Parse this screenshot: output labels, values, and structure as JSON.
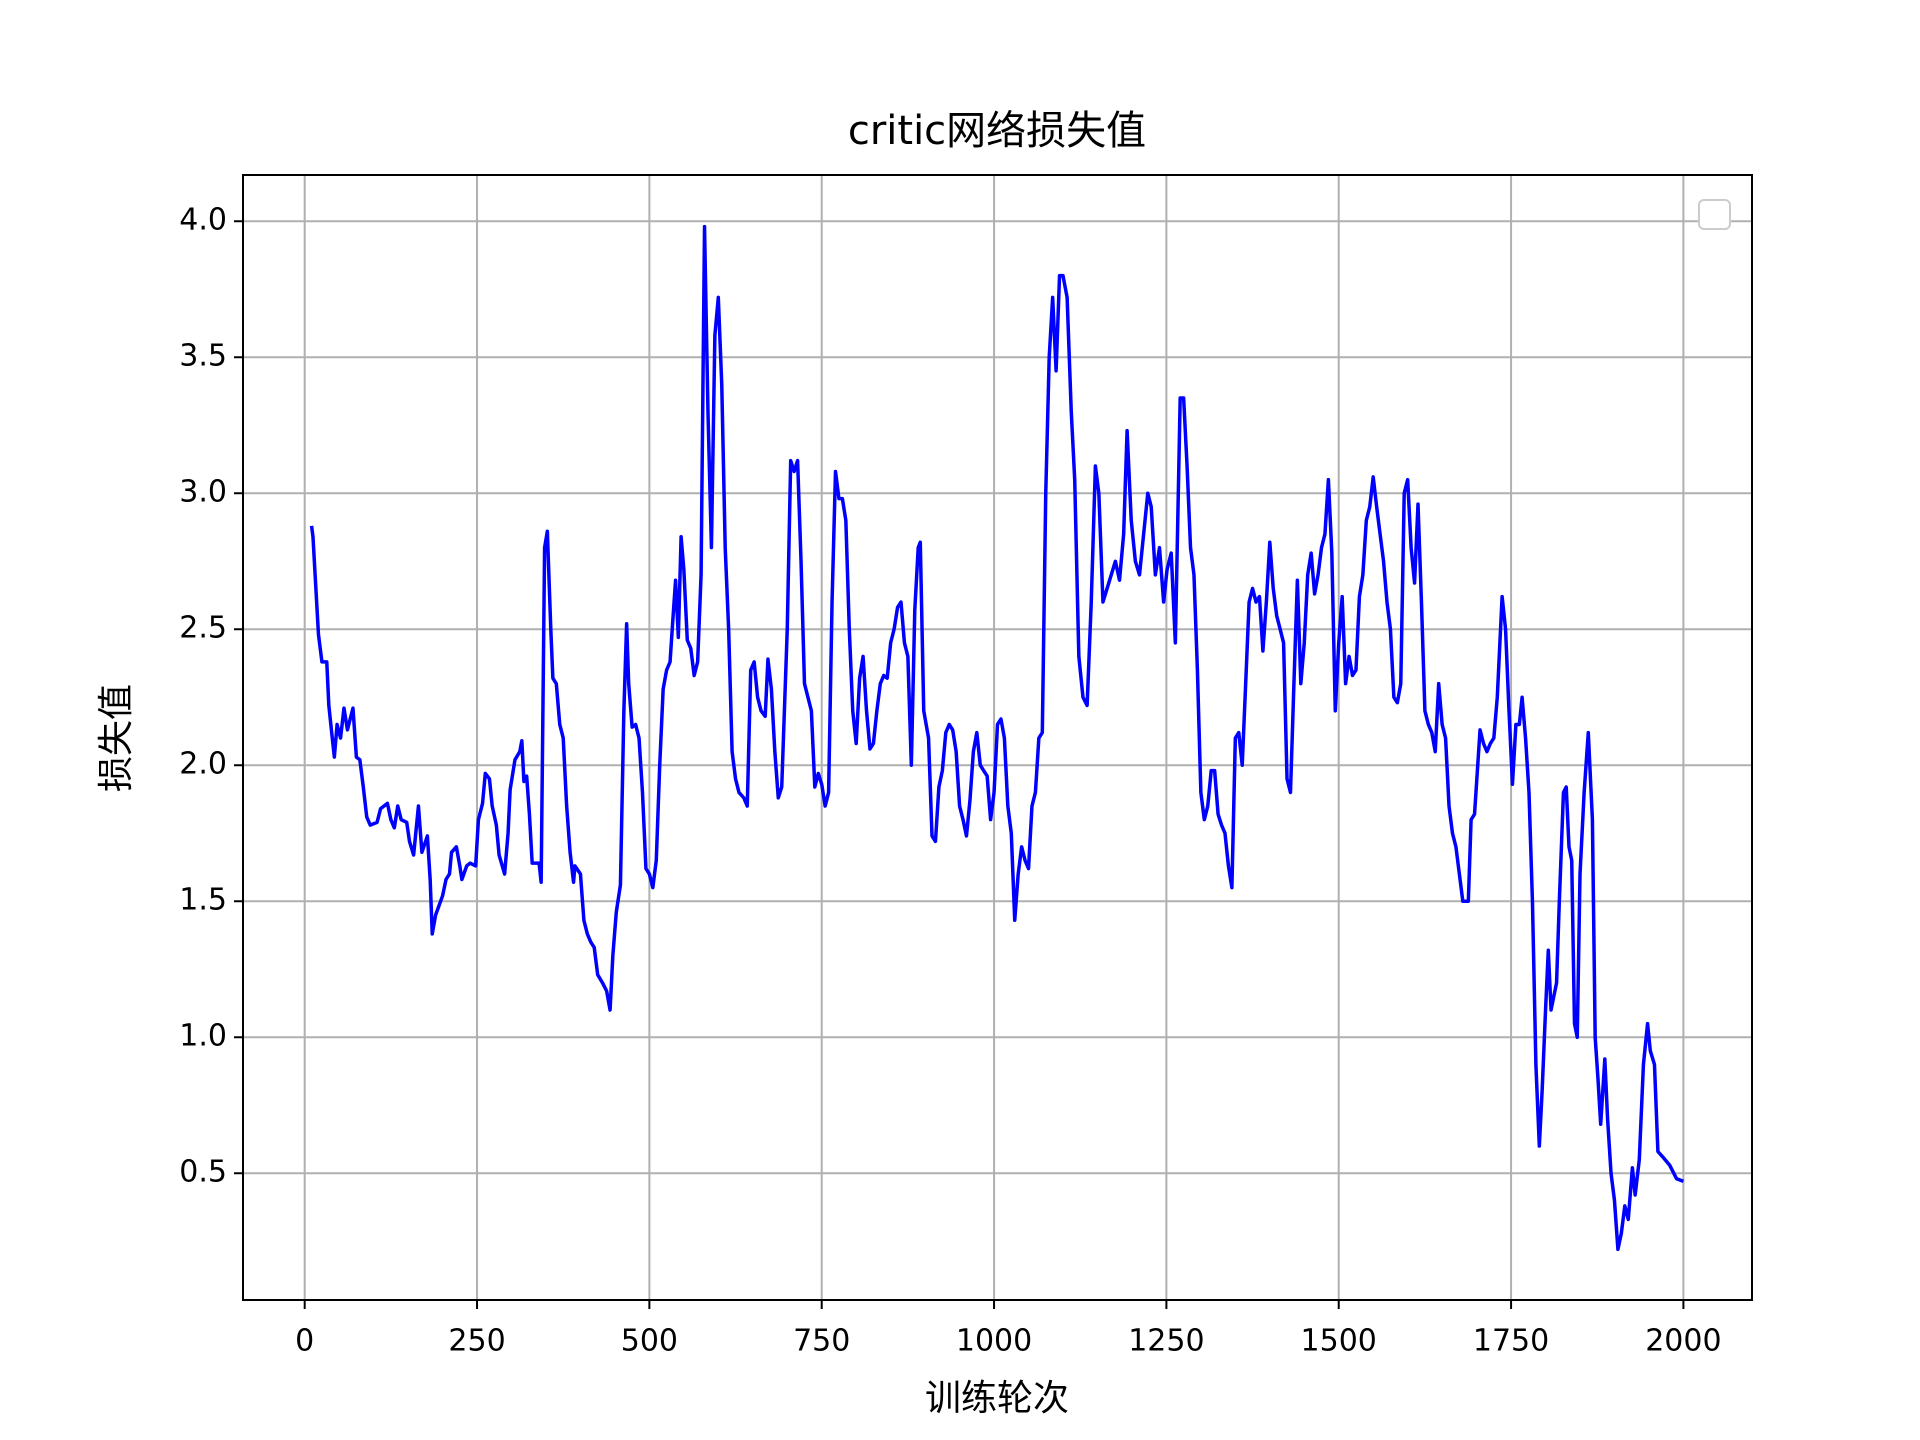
{
  "chart_data": {
    "type": "line",
    "title": "critic网络损失值",
    "xlabel": "训练轮次",
    "ylabel": "损失值",
    "color": "#0000ff",
    "grid": true,
    "legend": "upper right",
    "xlim": [
      -89.5,
      2099.5
    ],
    "ylim": [
      0.034,
      4.17
    ],
    "xticks": [
      0,
      250,
      500,
      750,
      1000,
      1250,
      1500,
      1750,
      2000
    ],
    "yticks": [
      0.5,
      {
        "value": 1,
        "label": "1.0"
      },
      1.5,
      {
        "value": 2,
        "label": "2.0"
      },
      2.5,
      {
        "value": 3,
        "label": "3.0"
      },
      3.5,
      {
        "value": 4,
        "label": "4.0"
      }
    ],
    "x": [
      10,
      12,
      20,
      25,
      32,
      35,
      40,
      43,
      47,
      52,
      57,
      62,
      70,
      75,
      80,
      85,
      90,
      95,
      105,
      110,
      120,
      125,
      130,
      135,
      140,
      148,
      152,
      158,
      165,
      170,
      178,
      182,
      185,
      190,
      200,
      205,
      210,
      213,
      220,
      225,
      228,
      235,
      240,
      248,
      252,
      258,
      262,
      268,
      272,
      278,
      282,
      290,
      295,
      298,
      305,
      312,
      315,
      318,
      322,
      326,
      330,
      340,
      343,
      348,
      352,
      357,
      360,
      365,
      370,
      375,
      380,
      385,
      390,
      392,
      400,
      405,
      410,
      415,
      420,
      425,
      432,
      438,
      443,
      447,
      452,
      458,
      463,
      467,
      470,
      475,
      480,
      485,
      490,
      495,
      500,
      505,
      510,
      515,
      520,
      525,
      530,
      535,
      538,
      542,
      546,
      550,
      555,
      560,
      565,
      570,
      575,
      580,
      585,
      590,
      595,
      600,
      605,
      610,
      615,
      620,
      625,
      630,
      637,
      642,
      647,
      652,
      657,
      662,
      668,
      672,
      677,
      682,
      687,
      692,
      700,
      705,
      710,
      715,
      720,
      725,
      730,
      735,
      740,
      745,
      750,
      755,
      760,
      765,
      770,
      775,
      780,
      785,
      790,
      795,
      800,
      805,
      810,
      815,
      820,
      825,
      830,
      835,
      840,
      845,
      850,
      855,
      860,
      865,
      870,
      875,
      880,
      885,
      890,
      893,
      898,
      905,
      910,
      915,
      920,
      925,
      930,
      935,
      940,
      945,
      950,
      955,
      960,
      965,
      970,
      975,
      980,
      985,
      990,
      995,
      1000,
      1005,
      1010,
      1015,
      1020,
      1025,
      1030,
      1035,
      1040,
      1045,
      1050,
      1055,
      1060,
      1065,
      1070,
      1075,
      1080,
      1085,
      1090,
      1095,
      1100,
      1106,
      1112,
      1117,
      1123,
      1129,
      1135,
      1141,
      1147,
      1152,
      1158,
      1164,
      1170,
      1176,
      1182,
      1188,
      1193,
      1199,
      1205,
      1211,
      1217,
      1223,
      1228,
      1234,
      1240,
      1246,
      1251,
      1257,
      1263,
      1270,
      1275,
      1280,
      1285,
      1290,
      1295,
      1300,
      1305,
      1310,
      1315,
      1320,
      1325,
      1330,
      1335,
      1340,
      1345,
      1350,
      1355,
      1360,
      1365,
      1370,
      1375,
      1380,
      1385,
      1390,
      1395,
      1400,
      1405,
      1410,
      1415,
      1420,
      1425,
      1430,
      1435,
      1440,
      1445,
      1450,
      1455,
      1460,
      1465,
      1470,
      1475,
      1480,
      1485,
      1490,
      1495,
      1500,
      1505,
      1510,
      1515,
      1520,
      1525,
      1530,
      1535,
      1540,
      1545,
      1550,
      1555,
      1560,
      1565,
      1570,
      1575,
      1580,
      1585,
      1590,
      1595,
      1600,
      1605,
      1610,
      1615,
      1620,
      1625,
      1630,
      1635,
      1640,
      1645,
      1650,
      1655,
      1660,
      1665,
      1670,
      1675,
      1680,
      1688,
      1692,
      1697,
      1705,
      1710,
      1715,
      1720,
      1725,
      1730,
      1737,
      1742,
      1747,
      1752,
      1757,
      1762,
      1766,
      1771,
      1776,
      1781,
      1786,
      1791,
      1795,
      1800,
      1804,
      1808,
      1812,
      1816,
      1820,
      1826,
      1830,
      1834,
      1838,
      1842,
      1846,
      1850,
      1856,
      1862,
      1868,
      1872,
      1876,
      1880,
      1886,
      1890,
      1895,
      1900,
      1905,
      1910,
      1915,
      1920,
      1926,
      1930,
      1936,
      1942,
      1948,
      1952,
      1958,
      1963,
      1970,
      1980,
      1990,
      2000
    ],
    "values": [
      2.88,
      2.84,
      2.48,
      2.38,
      2.38,
      2.22,
      2.1,
      2.03,
      2.15,
      2.1,
      2.21,
      2.13,
      2.21,
      2.03,
      2.02,
      1.92,
      1.81,
      1.78,
      1.79,
      1.84,
      1.86,
      1.8,
      1.77,
      1.85,
      1.8,
      1.79,
      1.72,
      1.67,
      1.85,
      1.68,
      1.74,
      1.58,
      1.38,
      1.45,
      1.52,
      1.58,
      1.6,
      1.68,
      1.7,
      1.63,
      1.58,
      1.63,
      1.64,
      1.63,
      1.8,
      1.86,
      1.97,
      1.95,
      1.85,
      1.78,
      1.67,
      1.6,
      1.75,
      1.91,
      2.02,
      2.05,
      2.09,
      1.94,
      1.96,
      1.82,
      1.64,
      1.64,
      1.57,
      2.8,
      2.86,
      2.5,
      2.32,
      2.3,
      2.15,
      2.1,
      1.85,
      1.68,
      1.57,
      1.63,
      1.6,
      1.43,
      1.38,
      1.35,
      1.33,
      1.23,
      1.2,
      1.17,
      1.1,
      1.3,
      1.46,
      1.56,
      2.2,
      2.52,
      2.3,
      2.14,
      2.15,
      2.1,
      1.9,
      1.62,
      1.6,
      1.55,
      1.65,
      2.0,
      2.28,
      2.35,
      2.38,
      2.57,
      2.68,
      2.47,
      2.84,
      2.72,
      2.46,
      2.43,
      2.33,
      2.38,
      2.7,
      3.98,
      3.3,
      2.8,
      3.58,
      3.72,
      3.4,
      2.8,
      2.5,
      2.05,
      1.95,
      1.9,
      1.88,
      1.85,
      2.35,
      2.38,
      2.25,
      2.2,
      2.18,
      2.39,
      2.28,
      2.05,
      1.88,
      1.92,
      2.5,
      3.12,
      3.08,
      3.12,
      2.75,
      2.3,
      2.25,
      2.2,
      1.92,
      1.97,
      1.93,
      1.85,
      1.9,
      2.6,
      3.08,
      2.98,
      2.98,
      2.9,
      2.5,
      2.2,
      2.08,
      2.32,
      2.4,
      2.2,
      2.06,
      2.08,
      2.2,
      2.3,
      2.33,
      2.32,
      2.45,
      2.5,
      2.58,
      2.6,
      2.45,
      2.4,
      2.0,
      2.57,
      2.8,
      2.82,
      2.2,
      2.1,
      1.74,
      1.72,
      1.92,
      1.98,
      2.12,
      2.15,
      2.13,
      2.05,
      1.85,
      1.8,
      1.74,
      1.87,
      2.05,
      2.12,
      2.0,
      1.98,
      1.96,
      1.8,
      1.9,
      2.15,
      2.17,
      2.1,
      1.85,
      1.75,
      1.43,
      1.6,
      1.7,
      1.65,
      1.62,
      1.85,
      1.9,
      2.1,
      2.12,
      3.0,
      3.5,
      3.72,
      3.45,
      3.8,
      3.8,
      3.72,
      3.3,
      3.05,
      2.4,
      2.25,
      2.22,
      2.6,
      3.1,
      3.0,
      2.6,
      2.65,
      2.7,
      2.75,
      2.68,
      2.85,
      3.23,
      2.9,
      2.75,
      2.7,
      2.85,
      3.0,
      2.95,
      2.7,
      2.8,
      2.6,
      2.72,
      2.78,
      2.45,
      3.35,
      3.35,
      3.1,
      2.8,
      2.7,
      2.35,
      1.9,
      1.8,
      1.85,
      1.98,
      1.98,
      1.82,
      1.78,
      1.75,
      1.63,
      1.55,
      2.1,
      2.12,
      2.0,
      2.3,
      2.6,
      2.65,
      2.6,
      2.62,
      2.42,
      2.6,
      2.82,
      2.65,
      2.55,
      2.5,
      2.45,
      1.95,
      1.9,
      2.3,
      2.68,
      2.3,
      2.45,
      2.7,
      2.78,
      2.63,
      2.7,
      2.8,
      2.85,
      3.05,
      2.78,
      2.2,
      2.45,
      2.62,
      2.3,
      2.4,
      2.33,
      2.35,
      2.62,
      2.7,
      2.9,
      2.95,
      3.06,
      2.95,
      2.85,
      2.75,
      2.6,
      2.5,
      2.25,
      2.23,
      2.3,
      3.0,
      3.05,
      2.8,
      2.67,
      2.96,
      2.6,
      2.2,
      2.15,
      2.12,
      2.05,
      2.3,
      2.15,
      2.1,
      1.85,
      1.75,
      1.7,
      1.6,
      1.5,
      1.5,
      1.8,
      1.82,
      2.13,
      2.08,
      2.05,
      2.08,
      2.1,
      2.25,
      2.62,
      2.5,
      2.2,
      1.93,
      2.15,
      2.15,
      2.25,
      2.1,
      1.9,
      1.5,
      0.9,
      0.6,
      0.8,
      1.1,
      1.32,
      1.1,
      1.15,
      1.2,
      1.5,
      1.9,
      1.92,
      1.7,
      1.65,
      1.05,
      1.0,
      1.6,
      1.9,
      2.12,
      1.8,
      1.0,
      0.85,
      0.68,
      0.92,
      0.7,
      0.5,
      0.4,
      0.22,
      0.28,
      0.38,
      0.33,
      0.52,
      0.42,
      0.55,
      0.9,
      1.05,
      0.95,
      0.9,
      0.58,
      0.56,
      0.53,
      0.48,
      0.47
    ]
  }
}
